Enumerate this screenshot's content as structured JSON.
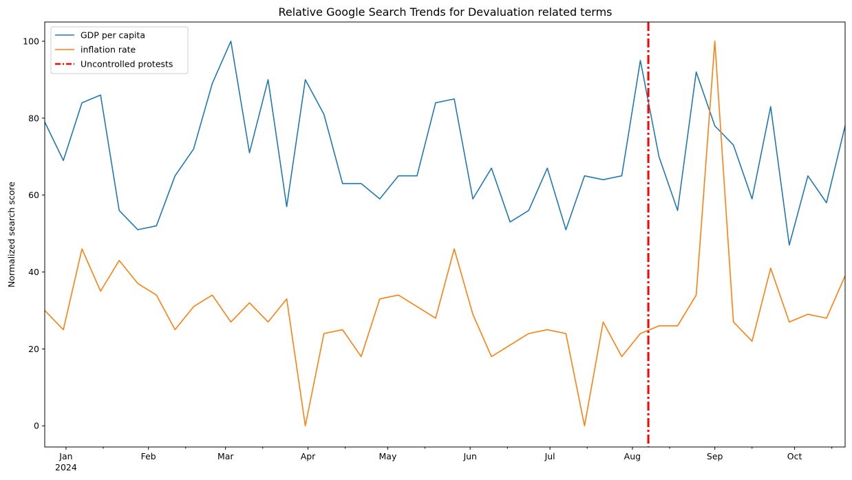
{
  "chart_data": {
    "type": "line",
    "title": "Relative Google Search Trends for Devaluation related terms",
    "xlabel": "",
    "ylabel": "Normalized search score",
    "x": [
      "2023-12-24",
      "2023-12-31",
      "2024-01-07",
      "2024-01-14",
      "2024-01-21",
      "2024-01-28",
      "2024-02-04",
      "2024-02-11",
      "2024-02-18",
      "2024-02-25",
      "2024-03-03",
      "2024-03-10",
      "2024-03-17",
      "2024-03-24",
      "2024-03-31",
      "2024-04-07",
      "2024-04-14",
      "2024-04-21",
      "2024-04-28",
      "2024-05-05",
      "2024-05-12",
      "2024-05-19",
      "2024-05-26",
      "2024-06-02",
      "2024-06-09",
      "2024-06-16",
      "2024-06-23",
      "2024-06-30",
      "2024-07-07",
      "2024-07-14",
      "2024-07-21",
      "2024-07-28",
      "2024-08-04",
      "2024-08-11",
      "2024-08-18",
      "2024-08-25",
      "2024-09-01",
      "2024-09-08",
      "2024-09-15",
      "2024-09-22",
      "2024-09-29",
      "2024-10-06",
      "2024-10-13",
      "2024-10-20"
    ],
    "series": [
      {
        "name": "GDP per capita",
        "color": "#1f77b4",
        "values": [
          79,
          69,
          84,
          86,
          56,
          51,
          52,
          65,
          72,
          89,
          100,
          71,
          90,
          57,
          90,
          81,
          63,
          63,
          59,
          65,
          65,
          84,
          85,
          59,
          67,
          53,
          56,
          67,
          51,
          65,
          64,
          65,
          95,
          70,
          56,
          92,
          78,
          73,
          59,
          83,
          47,
          65,
          58,
          78
        ]
      },
      {
        "name": "inflation rate",
        "color": "#ff7f0e",
        "values": [
          30,
          25,
          46,
          35,
          43,
          37,
          34,
          25,
          31,
          34,
          27,
          32,
          27,
          33,
          0,
          24,
          25,
          18,
          33,
          34,
          31,
          28,
          46,
          29,
          18,
          21,
          24,
          25,
          24,
          0,
          27,
          18,
          24,
          26,
          26,
          34,
          100,
          27,
          22,
          41,
          27,
          29,
          28,
          39
        ]
      }
    ],
    "event_line": {
      "label": "Uncontrolled protests",
      "x": "2024-08-07",
      "color": "#ff0000",
      "style": "dashdot"
    },
    "ylim": [
      -5.5,
      105
    ],
    "xlim": [
      "2023-12-24",
      "2024-10-20"
    ],
    "y_ticks": [
      0,
      20,
      40,
      60,
      80,
      100
    ],
    "x_major_ticks": [
      {
        "date": "2024-01-01",
        "label": "Jan",
        "sublabel": "2024"
      },
      {
        "date": "2024-02-01",
        "label": "Feb",
        "sublabel": ""
      },
      {
        "date": "2024-03-01",
        "label": "Mar",
        "sublabel": ""
      },
      {
        "date": "2024-04-01",
        "label": "Apr",
        "sublabel": ""
      },
      {
        "date": "2024-05-01",
        "label": "May",
        "sublabel": ""
      },
      {
        "date": "2024-06-01",
        "label": "Jun",
        "sublabel": ""
      },
      {
        "date": "2024-07-01",
        "label": "Jul",
        "sublabel": ""
      },
      {
        "date": "2024-08-01",
        "label": "Aug",
        "sublabel": ""
      },
      {
        "date": "2024-09-01",
        "label": "Sep",
        "sublabel": ""
      },
      {
        "date": "2024-10-01",
        "label": "Oct",
        "sublabel": ""
      }
    ],
    "x_minor_ticks": [
      "2024-01-15",
      "2024-02-15",
      "2024-03-15",
      "2024-04-15",
      "2024-05-15",
      "2024-06-15",
      "2024-07-15",
      "2024-08-15",
      "2024-09-15",
      "2024-10-15"
    ],
    "legend_position": "top-left",
    "grid": false
  }
}
